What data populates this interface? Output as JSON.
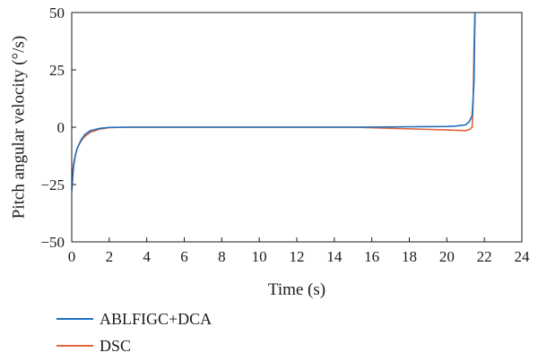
{
  "chart_data": {
    "type": "line",
    "xlabel": "Time (s)",
    "ylabel": "Pitch angular velocity (°/s)",
    "xlim": [
      0,
      24
    ],
    "ylim": [
      -50,
      50
    ],
    "xticks": [
      0,
      2,
      4,
      6,
      8,
      10,
      12,
      14,
      16,
      18,
      20,
      22,
      24
    ],
    "yticks": [
      -50,
      -25,
      0,
      25,
      50
    ],
    "xtick_labels": [
      "0",
      "2",
      "4",
      "6",
      "8",
      "10",
      "12",
      "14",
      "16",
      "18",
      "20",
      "22",
      "24"
    ],
    "ytick_labels": [
      "−50",
      "−25",
      "0",
      "25",
      "50"
    ],
    "grid": false,
    "legend_position": "bottom-left outside",
    "series": [
      {
        "name": "ABLFIGC+DCA",
        "color": "#1f6fbf",
        "x": [
          0,
          0.05,
          0.1,
          0.2,
          0.3,
          0.5,
          0.7,
          1.0,
          1.5,
          2.0,
          3.0,
          5.0,
          10.0,
          15.0,
          20.0,
          20.5,
          21.0,
          21.2,
          21.35,
          21.45,
          21.5
        ],
        "y": [
          -28,
          -22,
          -17,
          -12,
          -9,
          -5.5,
          -3.2,
          -1.5,
          -0.5,
          -0.1,
          0,
          0,
          0,
          0,
          0.3,
          0.5,
          1.0,
          2.5,
          5,
          20,
          50
        ]
      },
      {
        "name": "DSC",
        "color": "#e3633b",
        "x": [
          0,
          0.05,
          0.1,
          0.2,
          0.3,
          0.5,
          0.7,
          1.0,
          1.5,
          2.0,
          3.0,
          5.0,
          10.0,
          15.0,
          20.0,
          21.0,
          21.2,
          21.35,
          21.4,
          21.45,
          21.5
        ],
        "y": [
          -24,
          -19,
          -16,
          -12,
          -9,
          -6,
          -4,
          -2.2,
          -0.8,
          -0.2,
          0,
          0,
          0,
          0,
          -1.2,
          -1.5,
          -1.0,
          0,
          10,
          35,
          50
        ]
      }
    ]
  }
}
